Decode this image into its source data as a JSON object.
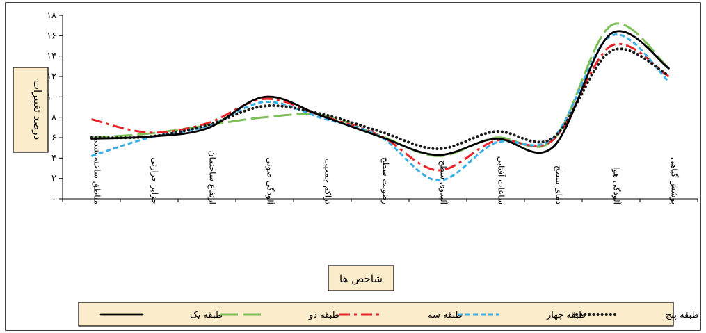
{
  "chart_data": {
    "type": "line",
    "xlabel": "شاخص ها",
    "ylabel": "درصد تغییرات",
    "ylim": [
      0,
      18
    ],
    "yticks": [
      0,
      2,
      4,
      6,
      8,
      10,
      12,
      14,
      16,
      18
    ],
    "ytick_labels": [
      "۰",
      "۲",
      "۴",
      "۶",
      "۸",
      "۱۰",
      "۱۲",
      "۱۴",
      "۱۶",
      "۱۸"
    ],
    "grid": false,
    "legend_position": "bottom",
    "categories": [
      "مناطق ساخته شده",
      "جزایر حرارتی",
      "ارتفاع ساختمان",
      "آلودگی صوتی",
      "تراکم جمعیت",
      "رطوبت سطح",
      "آلبدوی سطح",
      "ساعات آفتابی",
      "دمای سطح",
      "آلودگی هوا",
      "پوشش گیاهی"
    ],
    "series": [
      {
        "name": "طبقه یک",
        "color": "#000000",
        "dash": "solid",
        "values": [
          5.9,
          6.1,
          6.9,
          10.0,
          8.1,
          6.1,
          4.3,
          5.9,
          5.1,
          16.2,
          12.8
        ]
      },
      {
        "name": "طبقه دو",
        "color": "#7cbf57",
        "dash": "long-dash",
        "values": [
          6.0,
          6.4,
          7.2,
          8.0,
          8.2,
          6.2,
          4.2,
          6.0,
          5.8,
          17.0,
          12.8
        ]
      },
      {
        "name": "طبقه سه",
        "color": "#e8242a",
        "dash": "dash-dot",
        "values": [
          7.8,
          6.5,
          7.4,
          9.8,
          8.1,
          6.2,
          2.8,
          5.7,
          5.8,
          15.0,
          12.0
        ]
      },
      {
        "name": "طبقه چهار",
        "color": "#3aaee6",
        "dash": "short-dash",
        "values": [
          4.2,
          6.0,
          7.1,
          9.5,
          7.9,
          6.1,
          1.8,
          5.5,
          6.0,
          16.0,
          11.5
        ]
      },
      {
        "name": "طبقه پنج",
        "color": "#1a1a1a",
        "dash": "dotted",
        "values": [
          6.0,
          6.1,
          7.2,
          9.1,
          8.3,
          6.6,
          4.9,
          6.6,
          6.0,
          14.5,
          12.1
        ]
      }
    ]
  }
}
